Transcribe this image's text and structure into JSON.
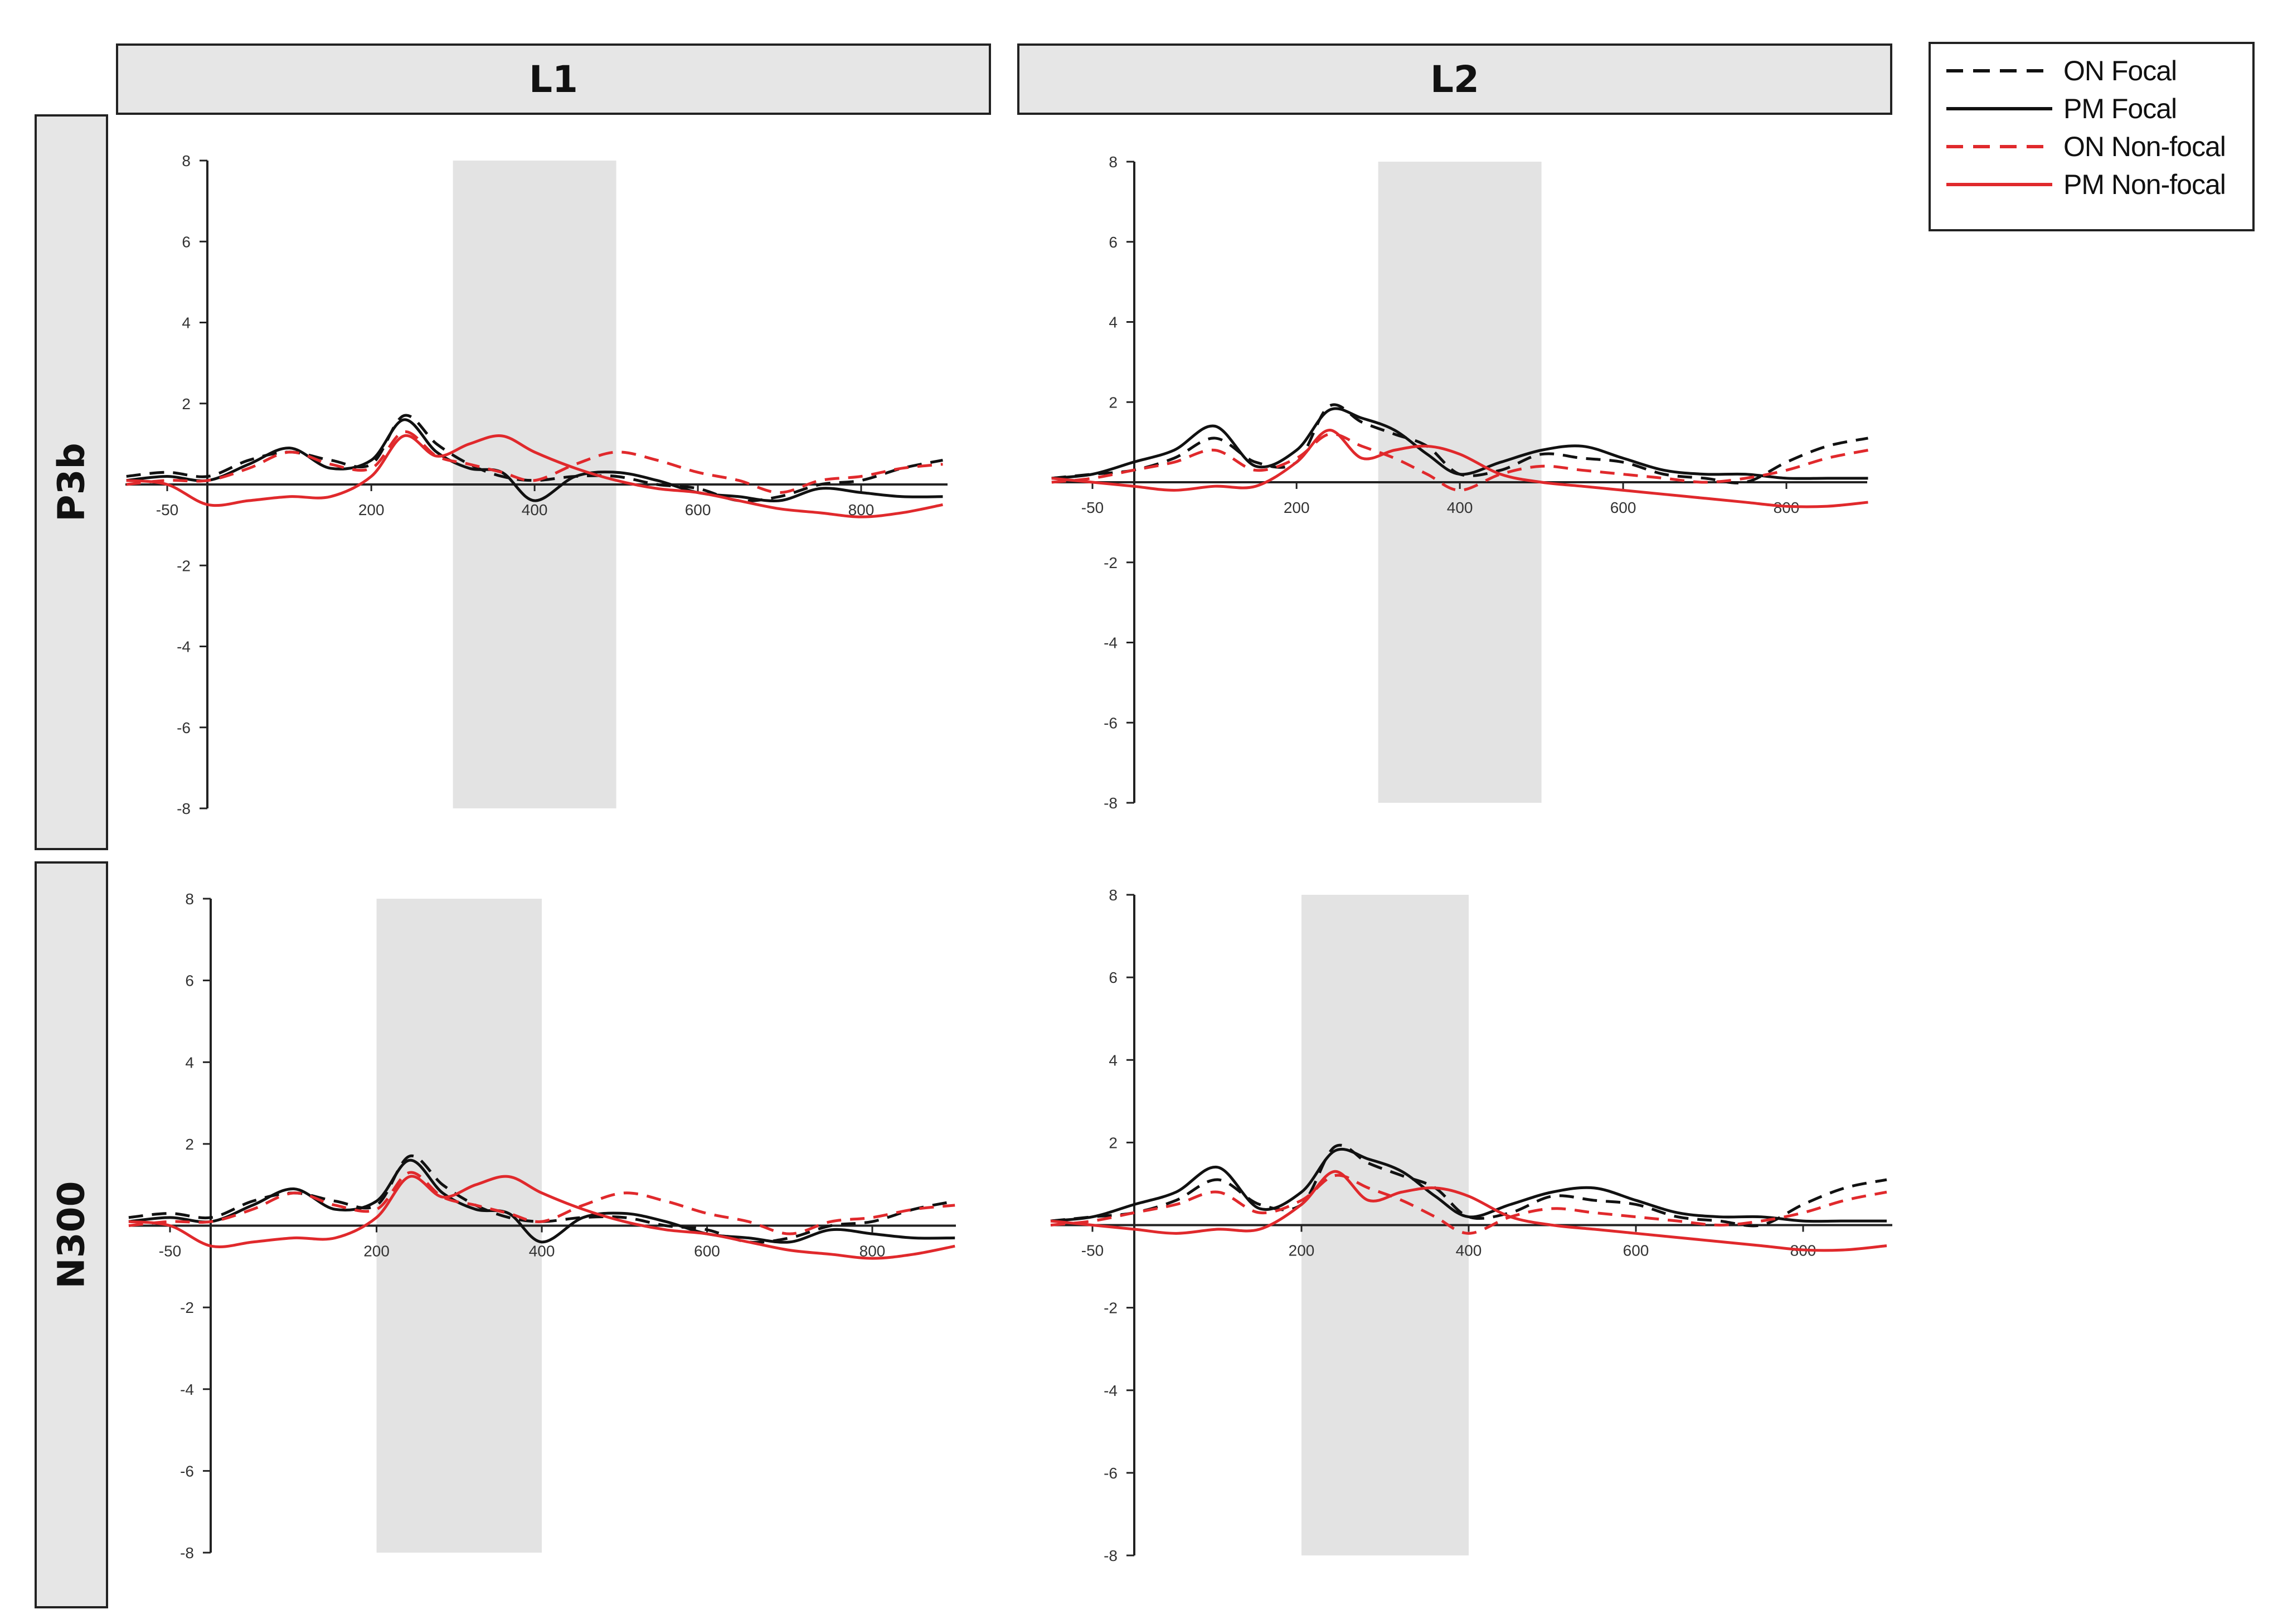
{
  "columns": [
    "L1",
    "L2"
  ],
  "rows": [
    "P3b",
    "N300"
  ],
  "legend": [
    {
      "label": "ON Focal",
      "color": "#111111",
      "dash": true
    },
    {
      "label": "PM Focal",
      "color": "#111111",
      "dash": false
    },
    {
      "label": "ON Non-focal",
      "color": "#e0292c",
      "dash": true
    },
    {
      "label": "PM Non-focal",
      "color": "#e0292c",
      "dash": false
    }
  ],
  "colors": {
    "black": "#111111",
    "red": "#e0292c",
    "window": "#e3e3e3"
  },
  "chart_data": [
    {
      "type": "line",
      "panel": "P3b / L1",
      "xlim": [
        -100,
        900
      ],
      "ylim": [
        -8,
        8
      ],
      "x_ticks": [
        -50,
        200,
        400,
        600,
        800
      ],
      "y_ticks": [
        8,
        6,
        4,
        2,
        -2,
        -4,
        -6,
        -8
      ],
      "shaded_window": [
        300,
        500
      ],
      "x": [
        -100,
        -50,
        0,
        50,
        100,
        150,
        200,
        240,
        280,
        320,
        360,
        400,
        450,
        500,
        550,
        600,
        650,
        700,
        750,
        800,
        850,
        900
      ],
      "series": [
        {
          "name": "ON Focal",
          "values": [
            0.2,
            0.3,
            0.2,
            0.6,
            0.8,
            0.6,
            0.5,
            1.7,
            1.0,
            0.5,
            0.2,
            0.1,
            0.2,
            0.2,
            0.0,
            -0.1,
            -0.4,
            -0.3,
            0.0,
            0.1,
            0.4,
            0.6
          ]
        },
        {
          "name": "PM Focal",
          "values": [
            0.1,
            0.2,
            0.1,
            0.5,
            0.9,
            0.4,
            0.6,
            1.6,
            0.8,
            0.4,
            0.3,
            -0.4,
            0.2,
            0.3,
            0.1,
            -0.2,
            -0.3,
            -0.4,
            -0.1,
            -0.2,
            -0.3,
            -0.3
          ]
        },
        {
          "name": "ON Non-focal",
          "values": [
            0.0,
            0.1,
            0.1,
            0.4,
            0.8,
            0.5,
            0.4,
            1.3,
            0.7,
            0.5,
            0.3,
            0.1,
            0.5,
            0.8,
            0.6,
            0.3,
            0.1,
            -0.2,
            0.1,
            0.2,
            0.4,
            0.5
          ]
        },
        {
          "name": "PM Non-focal",
          "values": [
            0.1,
            0.0,
            -0.5,
            -0.4,
            -0.3,
            -0.3,
            0.2,
            1.2,
            0.7,
            1.0,
            1.2,
            0.8,
            0.4,
            0.1,
            -0.1,
            -0.2,
            -0.4,
            -0.6,
            -0.7,
            -0.8,
            -0.7,
            -0.5
          ]
        }
      ]
    },
    {
      "type": "line",
      "panel": "P3b / L2",
      "xlim": [
        -100,
        900
      ],
      "ylim": [
        -8,
        8
      ],
      "x_ticks": [
        -50,
        200,
        400,
        600,
        800
      ],
      "y_ticks": [
        8,
        6,
        4,
        2,
        -2,
        -4,
        -6,
        -8
      ],
      "shaded_window": [
        300,
        500
      ],
      "x": [
        -100,
        -50,
        0,
        50,
        100,
        150,
        200,
        240,
        280,
        320,
        360,
        400,
        450,
        500,
        550,
        600,
        650,
        700,
        750,
        800,
        850,
        900
      ],
      "series": [
        {
          "name": "ON Focal",
          "values": [
            0.1,
            0.2,
            0.3,
            0.6,
            1.1,
            0.5,
            0.5,
            1.9,
            1.5,
            1.2,
            0.9,
            0.2,
            0.3,
            0.7,
            0.6,
            0.5,
            0.2,
            0.1,
            0.0,
            0.5,
            0.9,
            1.1
          ]
        },
        {
          "name": "PM Focal",
          "values": [
            0.1,
            0.2,
            0.5,
            0.8,
            1.4,
            0.4,
            0.8,
            1.8,
            1.6,
            1.3,
            0.7,
            0.2,
            0.5,
            0.8,
            0.9,
            0.6,
            0.3,
            0.2,
            0.2,
            0.1,
            0.1,
            0.1
          ]
        },
        {
          "name": "ON Non-focal",
          "values": [
            0.0,
            0.1,
            0.3,
            0.5,
            0.8,
            0.3,
            0.6,
            1.2,
            0.9,
            0.6,
            0.2,
            -0.2,
            0.2,
            0.4,
            0.3,
            0.2,
            0.1,
            0.0,
            0.1,
            0.3,
            0.6,
            0.8
          ]
        },
        {
          "name": "PM Non-focal",
          "values": [
            0.1,
            0.0,
            -0.1,
            -0.2,
            -0.1,
            -0.1,
            0.5,
            1.3,
            0.6,
            0.8,
            0.9,
            0.7,
            0.2,
            0.0,
            -0.1,
            -0.2,
            -0.3,
            -0.4,
            -0.5,
            -0.6,
            -0.6,
            -0.5
          ]
        }
      ]
    },
    {
      "type": "line",
      "panel": "N300 / L1",
      "xlim": [
        -100,
        900
      ],
      "ylim": [
        -8,
        8
      ],
      "x_ticks": [
        -50,
        200,
        400,
        600,
        800
      ],
      "y_ticks": [
        8,
        6,
        4,
        2,
        -2,
        -4,
        -6,
        -8
      ],
      "shaded_window": [
        200,
        400
      ],
      "x": [
        -100,
        -50,
        0,
        50,
        100,
        150,
        200,
        240,
        280,
        320,
        360,
        400,
        450,
        500,
        550,
        600,
        650,
        700,
        750,
        800,
        850,
        900
      ],
      "series": [
        {
          "name": "ON Focal",
          "values": [
            0.2,
            0.3,
            0.2,
            0.6,
            0.8,
            0.6,
            0.5,
            1.7,
            1.0,
            0.5,
            0.2,
            0.1,
            0.2,
            0.2,
            0.0,
            -0.1,
            -0.4,
            -0.3,
            0.0,
            0.1,
            0.4,
            0.6
          ]
        },
        {
          "name": "PM Focal",
          "values": [
            0.1,
            0.2,
            0.1,
            0.5,
            0.9,
            0.4,
            0.6,
            1.6,
            0.8,
            0.4,
            0.3,
            -0.4,
            0.2,
            0.3,
            0.1,
            -0.2,
            -0.3,
            -0.4,
            -0.1,
            -0.2,
            -0.3,
            -0.3
          ]
        },
        {
          "name": "ON Non-focal",
          "values": [
            0.0,
            0.1,
            0.1,
            0.4,
            0.8,
            0.5,
            0.4,
            1.3,
            0.7,
            0.5,
            0.3,
            0.1,
            0.5,
            0.8,
            0.6,
            0.3,
            0.1,
            -0.2,
            0.1,
            0.2,
            0.4,
            0.5
          ]
        },
        {
          "name": "PM Non-focal",
          "values": [
            0.1,
            0.0,
            -0.5,
            -0.4,
            -0.3,
            -0.3,
            0.2,
            1.2,
            0.7,
            1.0,
            1.2,
            0.8,
            0.4,
            0.1,
            -0.1,
            -0.2,
            -0.4,
            -0.6,
            -0.7,
            -0.8,
            -0.7,
            -0.5
          ]
        }
      ]
    },
    {
      "type": "line",
      "panel": "N300 / L2",
      "xlim": [
        -100,
        900
      ],
      "ylim": [
        -8,
        8
      ],
      "x_ticks": [
        -50,
        200,
        400,
        600,
        800
      ],
      "y_ticks": [
        8,
        6,
        4,
        2,
        -2,
        -4,
        -6,
        -8
      ],
      "shaded_window": [
        200,
        400
      ],
      "x": [
        -100,
        -50,
        0,
        50,
        100,
        150,
        200,
        240,
        280,
        320,
        360,
        400,
        450,
        500,
        550,
        600,
        650,
        700,
        750,
        800,
        850,
        900
      ],
      "series": [
        {
          "name": "ON Focal",
          "values": [
            0.1,
            0.2,
            0.3,
            0.6,
            1.1,
            0.5,
            0.5,
            1.9,
            1.5,
            1.2,
            0.9,
            0.2,
            0.3,
            0.7,
            0.6,
            0.5,
            0.2,
            0.1,
            0.0,
            0.5,
            0.9,
            1.1
          ]
        },
        {
          "name": "PM Focal",
          "values": [
            0.1,
            0.2,
            0.5,
            0.8,
            1.4,
            0.4,
            0.8,
            1.8,
            1.6,
            1.3,
            0.7,
            0.2,
            0.5,
            0.8,
            0.9,
            0.6,
            0.3,
            0.2,
            0.2,
            0.1,
            0.1,
            0.1
          ]
        },
        {
          "name": "ON Non-focal",
          "values": [
            0.0,
            0.1,
            0.3,
            0.5,
            0.8,
            0.3,
            0.6,
            1.2,
            0.9,
            0.6,
            0.2,
            -0.2,
            0.2,
            0.4,
            0.3,
            0.2,
            0.1,
            0.0,
            0.1,
            0.3,
            0.6,
            0.8
          ]
        },
        {
          "name": "PM Non-focal",
          "values": [
            0.1,
            0.0,
            -0.1,
            -0.2,
            -0.1,
            -0.1,
            0.5,
            1.3,
            0.6,
            0.8,
            0.9,
            0.7,
            0.2,
            0.0,
            -0.1,
            -0.2,
            -0.3,
            -0.4,
            -0.5,
            -0.6,
            -0.6,
            -0.5
          ]
        }
      ]
    }
  ]
}
